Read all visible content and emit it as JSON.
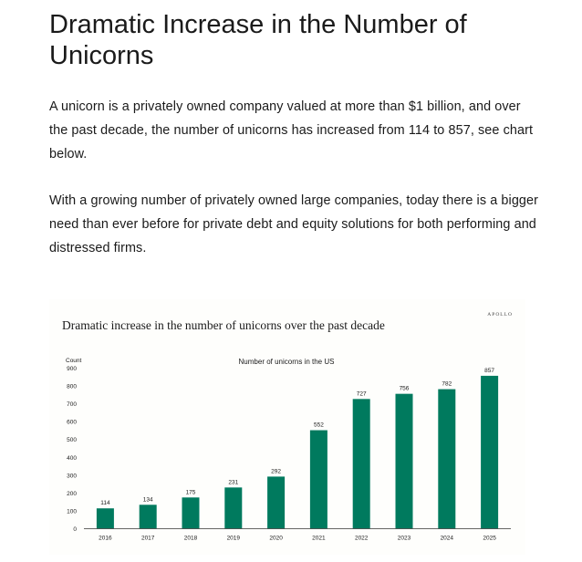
{
  "article": {
    "title": "Dramatic Increase in the Number of Unicorns",
    "paragraph_1": "A unicorn is a privately owned company valued at more than $1 billion, and over the past decade, the number of unicorns has increased from 114 to 857, see chart below.",
    "paragraph_2": "With a growing number of privately owned large companies, today there is a bigger need than ever before for private debt and equity solutions for both performing and distressed firms."
  },
  "figure": {
    "heading": "Dramatic increase in the number of unicorns over the past decade",
    "brand": "APOLLO"
  },
  "colors": {
    "bar": "#007a5e",
    "axis": "#333333",
    "text": "#1a1a1a"
  },
  "chart_data": {
    "type": "bar",
    "title": "Number of unicorns in the US",
    "ylabel": "Count",
    "xlabel": "",
    "categories": [
      "2016",
      "2017",
      "2018",
      "2019",
      "2020",
      "2021",
      "2022",
      "2023",
      "2024",
      "2025"
    ],
    "values": [
      114,
      134,
      175,
      231,
      292,
      552,
      727,
      756,
      782,
      857
    ],
    "yticks": [
      0,
      100,
      200,
      300,
      400,
      500,
      600,
      700,
      800,
      900
    ],
    "ylim": [
      0,
      900
    ],
    "grid": false,
    "legend": "none"
  }
}
